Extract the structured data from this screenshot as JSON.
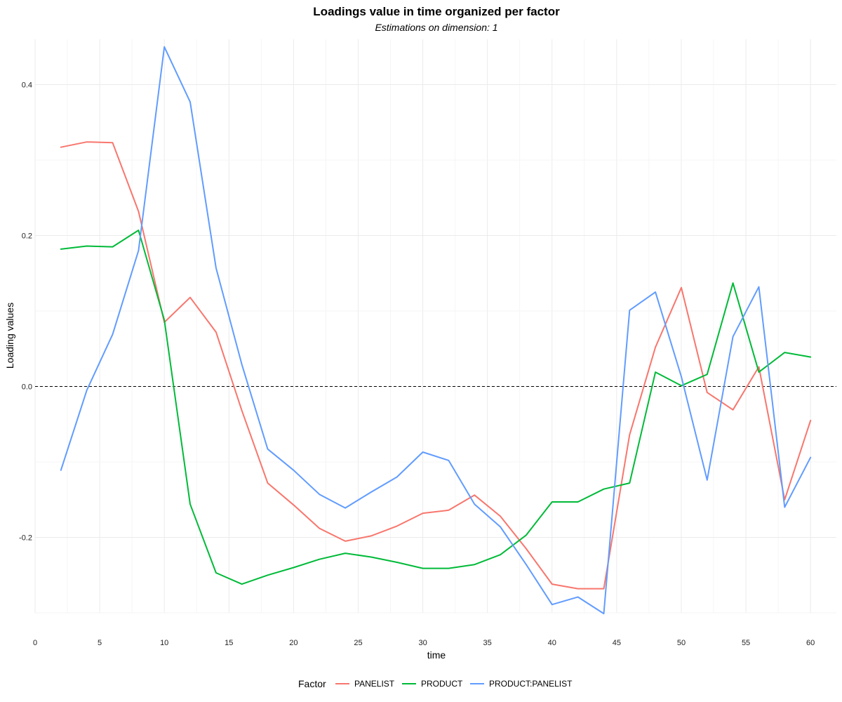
{
  "chart_data": {
    "type": "line",
    "title": "Loadings value in time organized per factor",
    "subtitle": "Estimations on dimension: 1",
    "xlabel": "time",
    "ylabel": "Loading values",
    "xlim": [
      0,
      62
    ],
    "ylim": [
      -0.3,
      0.46
    ],
    "x_ticks": [
      0,
      5,
      10,
      15,
      20,
      25,
      30,
      35,
      40,
      45,
      50,
      55,
      60
    ],
    "x_tick_labels": [
      "0",
      "5",
      "10",
      "15",
      "20",
      "25",
      "30",
      "35",
      "40",
      "45",
      "50",
      "55",
      "60"
    ],
    "y_ticks": [
      -0.2,
      0.0,
      0.2,
      0.4
    ],
    "y_tick_labels": [
      "-0.2",
      "0.0",
      "0.2",
      "0.4"
    ],
    "reference_line": {
      "y": 0,
      "style": "dashed",
      "color": "#000000"
    },
    "grid": true,
    "legend": {
      "title": "Factor",
      "placement": "bottom"
    },
    "x": [
      2,
      4,
      6,
      8,
      10,
      12,
      14,
      16,
      18,
      20,
      22,
      24,
      26,
      28,
      30,
      32,
      34,
      36,
      38,
      40,
      42,
      44,
      46,
      48,
      50,
      52,
      54,
      56,
      58,
      60
    ],
    "series": [
      {
        "name": "PANELIST",
        "color": "#F8766D",
        "values": [
          0.317,
          0.324,
          0.323,
          0.232,
          0.085,
          0.118,
          0.072,
          -0.032,
          -0.128,
          -0.157,
          -0.188,
          -0.205,
          -0.198,
          -0.185,
          -0.168,
          -0.164,
          -0.144,
          -0.172,
          -0.215,
          -0.262,
          -0.268,
          -0.268,
          -0.064,
          0.052,
          0.131,
          -0.008,
          -0.031,
          0.026,
          -0.15,
          -0.045
        ]
      },
      {
        "name": "PRODUCT",
        "color": "#00BA38",
        "values": [
          0.182,
          0.186,
          0.185,
          0.207,
          0.088,
          -0.156,
          -0.247,
          -0.262,
          -0.25,
          -0.24,
          -0.229,
          -0.221,
          -0.226,
          -0.233,
          -0.241,
          -0.241,
          -0.236,
          -0.223,
          -0.197,
          -0.153,
          -0.153,
          -0.136,
          -0.128,
          0.019,
          0.001,
          0.016,
          0.137,
          0.019,
          0.045,
          0.039
        ]
      },
      {
        "name": "PRODUCT:PANELIST",
        "color": "#619CFF",
        "values": [
          -0.111,
          -0.005,
          0.069,
          0.18,
          0.45,
          0.377,
          0.157,
          0.029,
          -0.083,
          -0.111,
          -0.143,
          -0.161,
          -0.14,
          -0.12,
          -0.087,
          -0.098,
          -0.156,
          -0.186,
          -0.236,
          -0.289,
          -0.279,
          -0.301,
          0.101,
          0.125,
          0.013,
          -0.124,
          0.066,
          0.132,
          -0.16,
          -0.094
        ]
      }
    ]
  }
}
